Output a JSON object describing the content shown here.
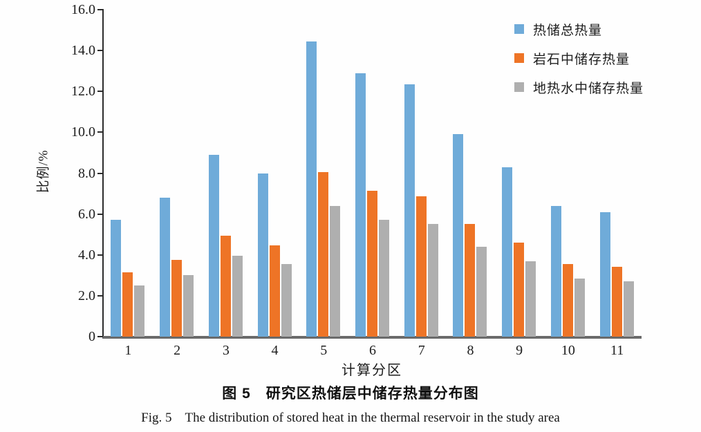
{
  "figure": {
    "caption_cn": "图 5　研究区热储层中储存热量分布图",
    "caption_en": "Fig. 5　The distribution of stored heat in the thermal reservoir in the study area"
  },
  "chart_data": {
    "type": "bar",
    "title": "",
    "xlabel": "计算分区",
    "ylabel": "比例/%",
    "ylim": [
      0,
      16
    ],
    "grid": false,
    "legend_position": "top-right",
    "categories": [
      "1",
      "2",
      "3",
      "4",
      "5",
      "6",
      "7",
      "8",
      "9",
      "10",
      "11"
    ],
    "series": [
      {
        "name": "热储总热量",
        "color": "#6FABD9",
        "values": [
          5.7,
          6.8,
          8.9,
          8.0,
          14.45,
          12.9,
          12.35,
          9.9,
          8.3,
          6.4,
          6.1
        ]
      },
      {
        "name": "岩石中储存热量",
        "color": "#EE7426",
        "values": [
          3.15,
          3.75,
          4.95,
          4.45,
          8.05,
          7.15,
          6.85,
          5.5,
          4.6,
          3.55,
          3.4
        ]
      },
      {
        "name": "地热水中储存热量",
        "color": "#AFAFAF",
        "values": [
          2.5,
          3.0,
          3.95,
          3.55,
          6.4,
          5.7,
          5.5,
          4.4,
          3.7,
          2.85,
          2.7
        ]
      }
    ],
    "y_ticks": [
      {
        "v": 0,
        "label": "0"
      },
      {
        "v": 2,
        "label": "2.0"
      },
      {
        "v": 4,
        "label": "4.0"
      },
      {
        "v": 6,
        "label": "6.0"
      },
      {
        "v": 8,
        "label": "8.0"
      },
      {
        "v": 10,
        "label": "10.0"
      },
      {
        "v": 12,
        "label": "12.0"
      },
      {
        "v": 14,
        "label": "14.0"
      },
      {
        "v": 16,
        "label": "16.0"
      }
    ],
    "axis_colors": {
      "y_axis": "#2b2b2b",
      "x_axis": "#6a6a6a"
    }
  }
}
